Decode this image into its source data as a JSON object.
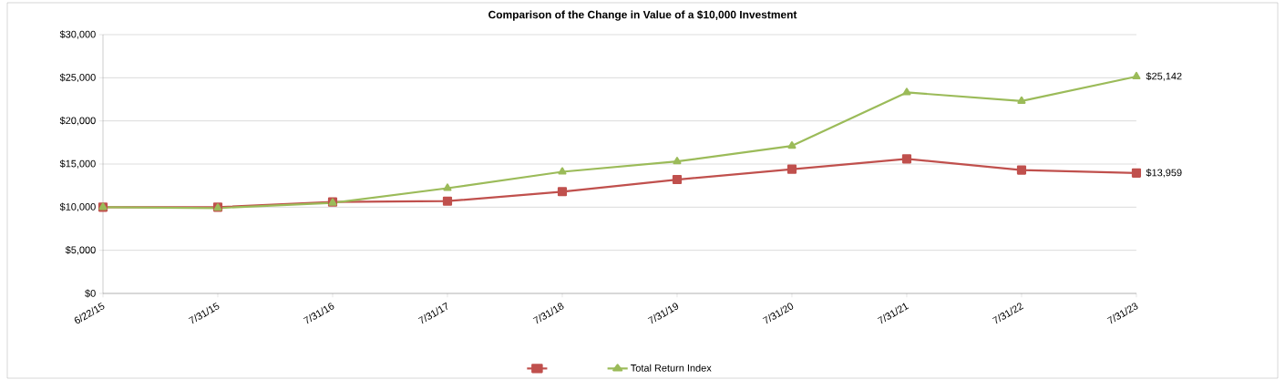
{
  "chart_data": {
    "type": "line",
    "title": "Comparison of the Change in Value of a $10,000 Investment",
    "categories": [
      "6/22/15",
      "7/31/15",
      "7/31/16",
      "7/31/17",
      "7/31/18",
      "7/31/19",
      "7/31/20",
      "7/31/21",
      "7/31/22",
      "7/31/23"
    ],
    "series": [
      {
        "color": "#c0504d",
        "marker": "square",
        "values": [
          10000,
          10000,
          10600,
          10700,
          11800,
          13200,
          14400,
          15600,
          14300,
          13959
        ],
        "value_labels": [
          null,
          null,
          null,
          null,
          null,
          null,
          null,
          null,
          null,
          "$13,959"
        ]
      },
      {
        "name": "Total Return Index",
        "color": "#9bbb59",
        "marker": "triangle",
        "values": [
          10000,
          9900,
          10500,
          12200,
          14100,
          15300,
          17100,
          23300,
          22300,
          25142
        ],
        "value_labels": [
          null,
          null,
          null,
          null,
          null,
          null,
          null,
          null,
          null,
          "$25,142"
        ]
      }
    ],
    "ylim": [
      0,
      30000
    ],
    "yticks": [
      {
        "value": 0,
        "label": "$0"
      },
      {
        "value": 5000,
        "label": "$5,000"
      },
      {
        "value": 10000,
        "label": "$10,000"
      },
      {
        "value": 15000,
        "label": "$15,000"
      },
      {
        "value": 20000,
        "label": "$20,000"
      },
      {
        "value": 25000,
        "label": "$25,000"
      },
      {
        "value": 30000,
        "label": "$30,000"
      }
    ],
    "grid": "y",
    "legend": "bottom"
  }
}
